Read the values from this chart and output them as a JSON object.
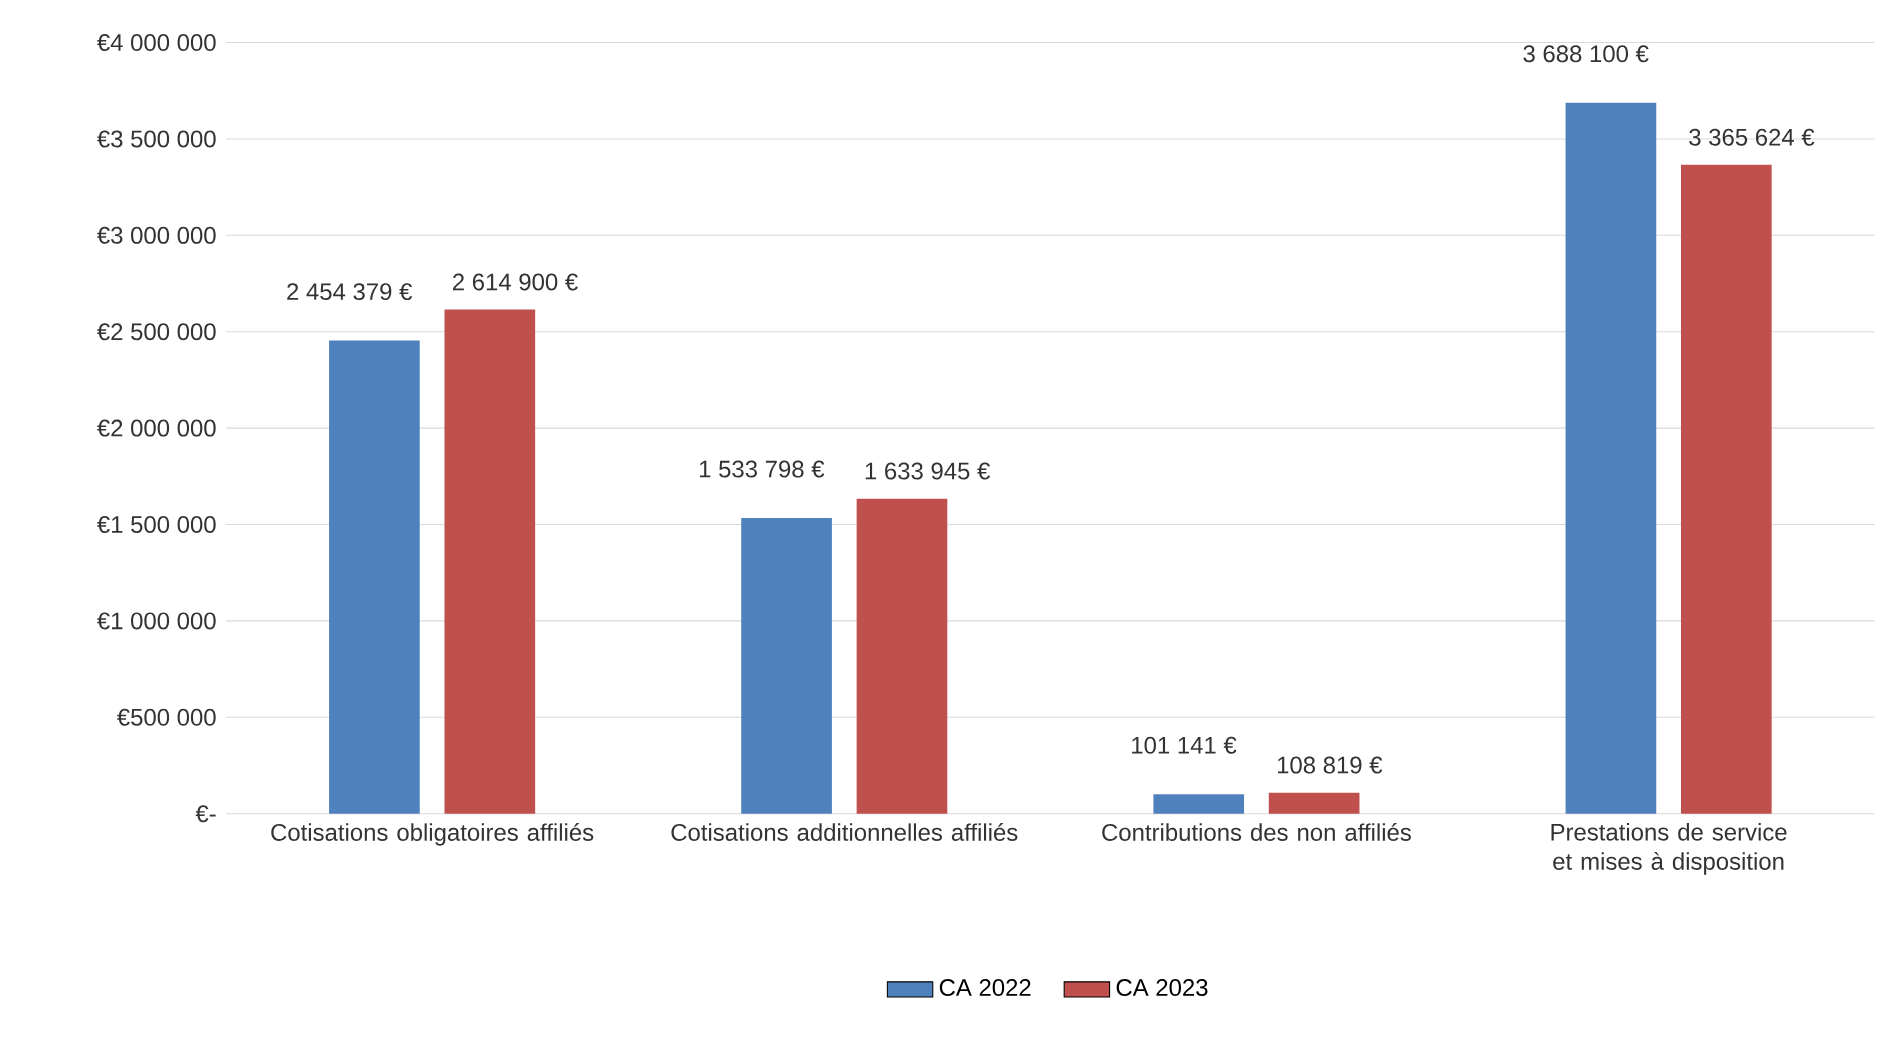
{
  "chart_data": {
    "type": "bar",
    "categories": [
      "Cotisations obligatoires affiliés",
      "Cotisations additionnelles affiliés",
      "Contributions des non affiliés",
      "Prestations de service et mises à disposition"
    ],
    "series": [
      {
        "name": "CA 2022",
        "color": "#4f81bd",
        "values": [
          2454379,
          1533798,
          101141,
          3688100
        ],
        "value_labels": [
          "2 454 379 €",
          "1 533 798 €",
          "101 141 €",
          "3 688 100 €"
        ]
      },
      {
        "name": "CA 2023",
        "color": "#c0504d",
        "values": [
          2614900,
          1633945,
          108819,
          3365624
        ],
        "value_labels": [
          "2 614 900 €",
          "1 633 945 €",
          "108 819 €",
          "3 365 624 €"
        ]
      }
    ],
    "ylim": [
      0,
      4000000
    ],
    "yticks": [
      {
        "value": 0,
        "label": "€-"
      },
      {
        "value": 500000,
        "label": "€500 000"
      },
      {
        "value": 1000000,
        "label": "€1 000 000"
      },
      {
        "value": 1500000,
        "label": "€1 500 000"
      },
      {
        "value": 2000000,
        "label": "€2 000 000"
      },
      {
        "value": 2500000,
        "label": "€2 500 000"
      },
      {
        "value": 3000000,
        "label": "€3 000 000"
      },
      {
        "value": 3500000,
        "label": "€3 500 000"
      },
      {
        "value": 4000000,
        "label": "€4 000 000"
      }
    ],
    "grid": "y",
    "legend": "bottom"
  }
}
